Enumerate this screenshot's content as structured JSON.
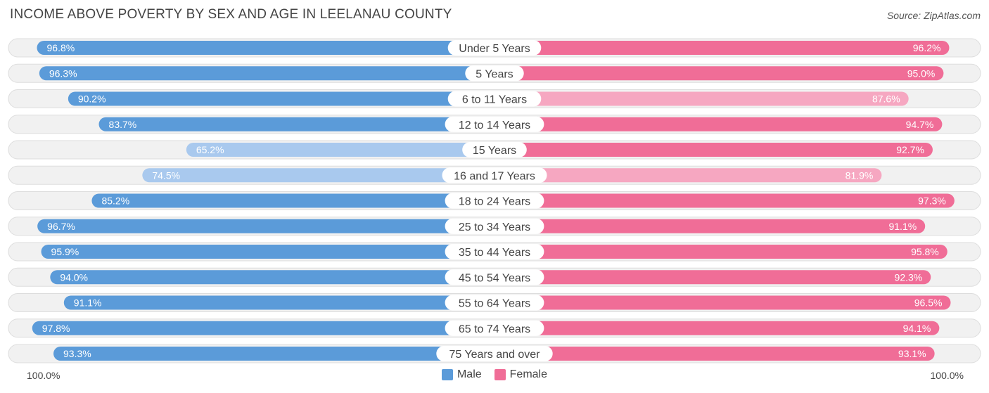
{
  "title": "INCOME ABOVE POVERTY BY SEX AND AGE IN LEELANAU COUNTY",
  "source": "Source: ZipAtlas.com",
  "axis": {
    "left_label": "100.0%",
    "right_label": "100.0%"
  },
  "legend": [
    {
      "label": "Male",
      "color": "#5b9bd9"
    },
    {
      "label": "Female",
      "color": "#f06d97"
    }
  ],
  "colors": {
    "male_strong": "#5b9bd9",
    "male_light": "#a9c9ee",
    "female_strong": "#f06d97",
    "female_light": "#f6a7c1",
    "row_bg": "#f1f1f1",
    "row_border": "#dddddd"
  },
  "chart_data": {
    "type": "bar",
    "orientation": "horizontal-diverging",
    "title": "INCOME ABOVE POVERTY BY SEX AND AGE IN LEELANAU COUNTY",
    "xlim": [
      0,
      100
    ],
    "unit": "%",
    "categories": [
      "Under 5 Years",
      "5 Years",
      "6 to 11 Years",
      "12 to 14 Years",
      "15 Years",
      "16 and 17 Years",
      "18 to 24 Years",
      "25 to 34 Years",
      "35 to 44 Years",
      "45 to 54 Years",
      "55 to 64 Years",
      "65 to 74 Years",
      "75 Years and over"
    ],
    "series": [
      {
        "name": "Male",
        "values": [
          96.8,
          96.3,
          90.2,
          83.7,
          65.2,
          74.5,
          85.2,
          96.7,
          95.9,
          94.0,
          91.1,
          97.8,
          93.3
        ],
        "labels": [
          "96.8%",
          "96.3%",
          "90.2%",
          "83.7%",
          "65.2%",
          "74.5%",
          "85.2%",
          "96.7%",
          "95.9%",
          "94.0%",
          "91.1%",
          "97.8%",
          "93.3%"
        ]
      },
      {
        "name": "Female",
        "values": [
          96.2,
          95.0,
          87.6,
          94.7,
          92.7,
          81.9,
          97.3,
          91.1,
          95.8,
          92.3,
          96.5,
          94.1,
          93.1
        ],
        "labels": [
          "96.2%",
          "95.0%",
          "87.6%",
          "94.7%",
          "92.7%",
          "81.9%",
          "97.3%",
          "91.1%",
          "95.8%",
          "92.3%",
          "96.5%",
          "94.1%",
          "93.1%"
        ]
      }
    ]
  }
}
